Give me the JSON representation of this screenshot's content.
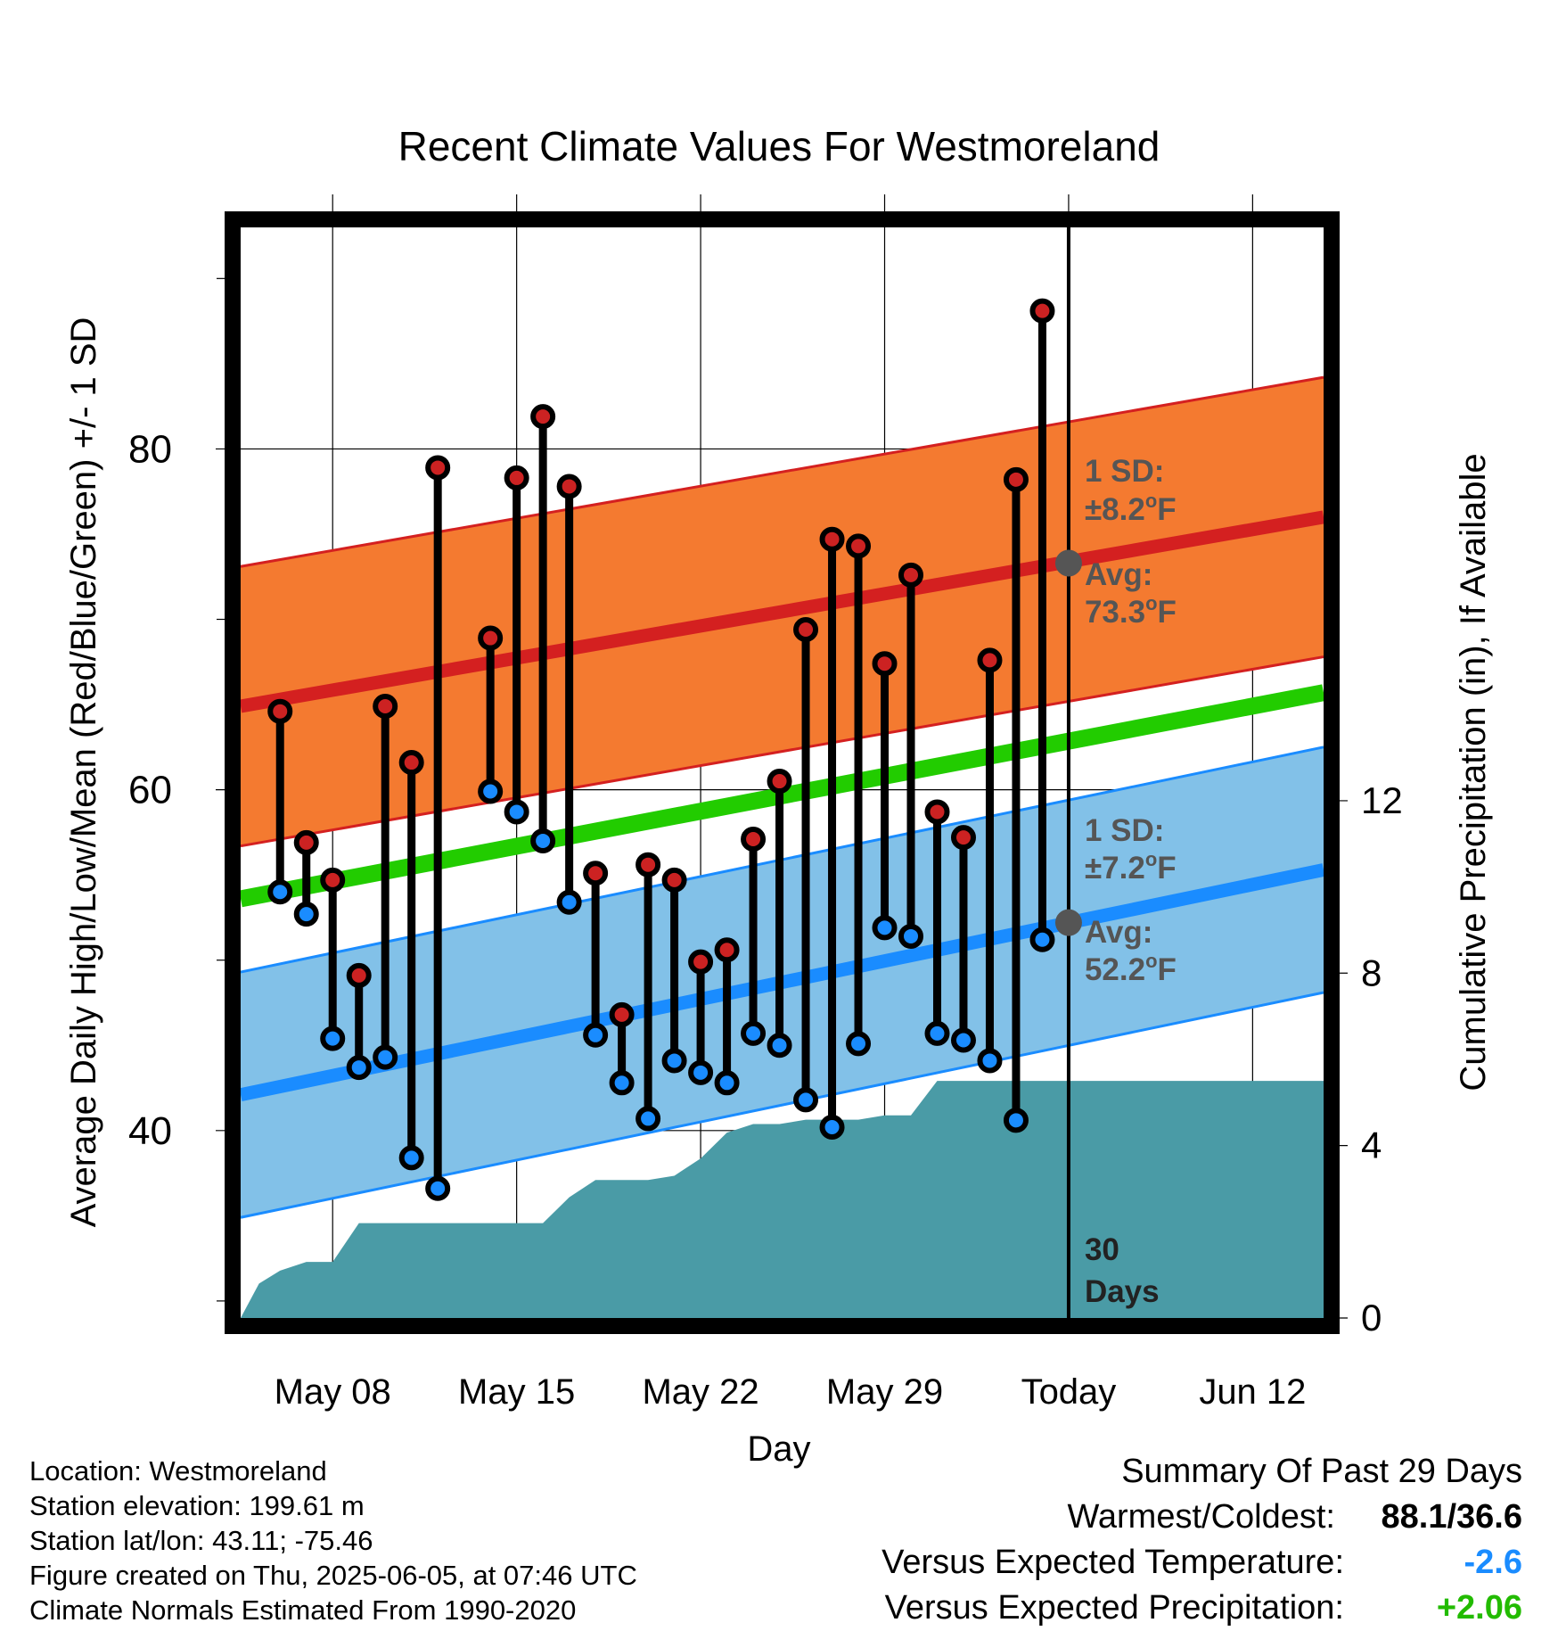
{
  "chart_data": {
    "type": "line",
    "title": "Recent Climate Values For Westmoreland",
    "xlabel": "Day",
    "ylabel_left": "Average Daily High/Low/Mean (Red/Blue/Green) +/- 1 SD",
    "ylabel_right": "Cumulative Precipitation (in), If Available",
    "x_ticks": [
      "May 08",
      "May 15",
      "May 22",
      "May 29",
      "Today",
      "Jun 12"
    ],
    "y_left_ticks": [
      40,
      60,
      80
    ],
    "y_left_range": [
      29,
      93
    ],
    "y_right_ticks": [
      0,
      4,
      8,
      12
    ],
    "y_right_range": [
      0,
      25.3
    ],
    "x_range_days": [
      -31.5,
      9.7
    ],
    "today_offset": 0,
    "grid": true,
    "colors": {
      "high_band": "#f47a30",
      "high_line": "#d42020",
      "low_band": "#82c1e8",
      "low_line": "#1a8cff",
      "mean_line": "#22cc00",
      "precip": "#4a9ba6",
      "high_point": "#cc2222",
      "low_point": "#1a8cff",
      "today_marker": "#555555"
    },
    "normals": {
      "high_avg": {
        "start": 64.9,
        "end": 76.0
      },
      "high_sd": 8.2,
      "low_avg": {
        "start": 42.1,
        "end": 55.3
      },
      "low_sd": 7.2,
      "mean": {
        "start": 53.6,
        "end": 65.7
      }
    },
    "daily": [
      {
        "day": -30,
        "high": 64.6,
        "low": 54.0
      },
      {
        "day": -29,
        "high": 56.9,
        "low": 52.7
      },
      {
        "day": -28,
        "high": 54.7,
        "low": 45.4
      },
      {
        "day": -27,
        "high": 49.1,
        "low": 43.7
      },
      {
        "day": -26,
        "high": 64.9,
        "low": 44.3
      },
      {
        "day": -25,
        "high": 61.6,
        "low": 38.4
      },
      {
        "day": -24,
        "high": 78.9,
        "low": 36.6
      },
      {
        "day": -22,
        "high": 68.9,
        "low": 59.9
      },
      {
        "day": -21,
        "high": 78.3,
        "low": 58.7
      },
      {
        "day": -20,
        "high": 81.9,
        "low": 57.0
      },
      {
        "day": -19,
        "high": 77.8,
        "low": 53.4
      },
      {
        "day": -18,
        "high": 55.1,
        "low": 45.6
      },
      {
        "day": -17,
        "high": 46.8,
        "low": 42.8
      },
      {
        "day": -16,
        "high": 55.6,
        "low": 40.7
      },
      {
        "day": -15,
        "high": 54.7,
        "low": 44.1
      },
      {
        "day": -14,
        "high": 49.9,
        "low": 43.4
      },
      {
        "day": -13,
        "high": 50.6,
        "low": 42.8
      },
      {
        "day": -12,
        "high": 57.1,
        "low": 45.7
      },
      {
        "day": -11,
        "high": 60.5,
        "low": 45.0
      },
      {
        "day": -10,
        "high": 69.4,
        "low": 41.8
      },
      {
        "day": -9,
        "high": 74.7,
        "low": 40.2
      },
      {
        "day": -8,
        "high": 74.3,
        "low": 45.1
      },
      {
        "day": -7,
        "high": 67.4,
        "low": 51.9
      },
      {
        "day": -6,
        "high": 72.6,
        "low": 51.4
      },
      {
        "day": -5,
        "high": 58.7,
        "low": 45.7
      },
      {
        "day": -4,
        "high": 57.2,
        "low": 45.3
      },
      {
        "day": -3,
        "high": 67.6,
        "low": 44.1
      },
      {
        "day": -2,
        "high": 78.2,
        "low": 40.6
      },
      {
        "day": -1,
        "high": 88.1,
        "low": 51.2
      }
    ],
    "precip_cumulative": [
      {
        "day": -31.5,
        "value": 0
      },
      {
        "day": -30.8,
        "value": 0.8
      },
      {
        "day": -30,
        "value": 1.1
      },
      {
        "day": -29,
        "value": 1.3
      },
      {
        "day": -28,
        "value": 1.3
      },
      {
        "day": -27,
        "value": 2.2
      },
      {
        "day": -26,
        "value": 2.2
      },
      {
        "day": -21,
        "value": 2.2
      },
      {
        "day": -20,
        "value": 2.2
      },
      {
        "day": -19,
        "value": 2.8
      },
      {
        "day": -18,
        "value": 3.2
      },
      {
        "day": -16,
        "value": 3.2
      },
      {
        "day": -15,
        "value": 3.3
      },
      {
        "day": -14,
        "value": 3.7
      },
      {
        "day": -13,
        "value": 4.3
      },
      {
        "day": -12,
        "value": 4.5
      },
      {
        "day": -11,
        "value": 4.5
      },
      {
        "day": -10,
        "value": 4.6
      },
      {
        "day": -9,
        "value": 4.6
      },
      {
        "day": -8,
        "value": 4.6
      },
      {
        "day": -7,
        "value": 4.7
      },
      {
        "day": -6,
        "value": 4.7
      },
      {
        "day": -5,
        "value": 5.5
      },
      {
        "day": 0,
        "value": 5.5
      },
      {
        "day": 9.7,
        "value": 5.5
      }
    ],
    "annotations": {
      "high_sd_label_1": "1 SD:",
      "high_sd_label_2": "±8.2",
      "high_avg_label_1": "Avg:",
      "high_avg_label_2": "73.3",
      "low_sd_label_1": "1 SD:",
      "low_sd_label_2": "±7.2",
      "low_avg_label_1": "Avg:",
      "low_avg_label_2": "52.2",
      "degree_mark": "o",
      "unit": "F",
      "window_label_1": "30",
      "window_label_2": "Days",
      "today_high_avg": 73.3,
      "today_low_avg": 52.2
    }
  },
  "footer": {
    "location": "Location: Westmoreland",
    "elevation": "Station elevation: 199.61 m",
    "latlon": "Station lat/lon: 43.11; -75.46",
    "created": "Figure created on Thu, 2025-06-05, at 07:46 UTC",
    "normals": "Climate Normals Estimated From 1990-2020"
  },
  "summary": {
    "heading": "Summary Of Past 29 Days",
    "warm_cold_label": "Warmest/Coldest:",
    "warm_cold_value": "88.1/36.6",
    "temp_label": "Versus Expected Temperature:",
    "temp_value": "-2.6",
    "temp_color": "#1a8cff",
    "precip_label": "Versus Expected Precipitation:",
    "precip_value": "+2.06",
    "precip_color": "#22bb00"
  }
}
